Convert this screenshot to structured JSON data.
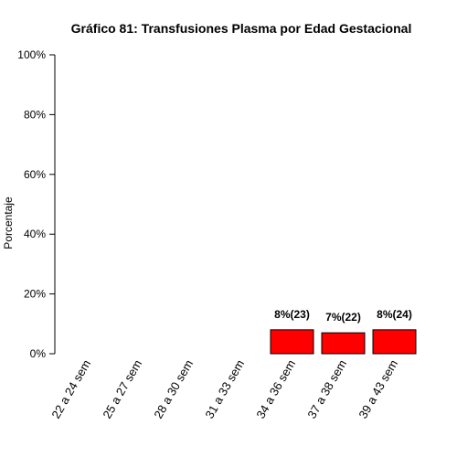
{
  "chart_data": {
    "type": "bar",
    "title": "Gráfico 81: Transfusiones Plasma por Edad Gestacional",
    "xlabel": "",
    "ylabel": "Porcentaje",
    "categories": [
      "22 a 24 sem",
      "25 a 27 sem",
      "28 a 30 sem",
      "31 a 33 sem",
      "34 a 36 sem",
      "37 a 38 sem",
      "39 a 43 sem"
    ],
    "values": [
      0,
      0,
      0,
      0,
      8,
      7,
      8
    ],
    "data_labels": [
      "",
      "",
      "",
      "",
      "8%(23)",
      "7%(22)",
      "8%(24)"
    ],
    "ylim": [
      0,
      100
    ],
    "yticks": [
      0,
      20,
      40,
      60,
      80,
      100
    ],
    "ytick_labels": [
      "0%",
      "20%",
      "40%",
      "60%",
      "80%",
      "100%"
    ],
    "bar_color": "#FF0000",
    "grid": false
  }
}
